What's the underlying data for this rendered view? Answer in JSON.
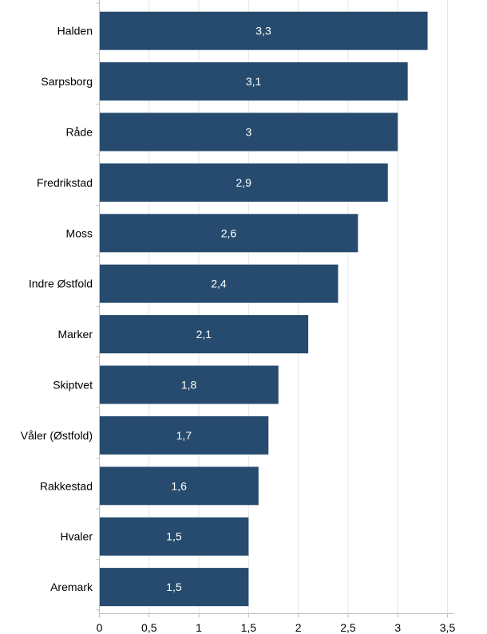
{
  "chart_data": {
    "type": "bar",
    "orientation": "horizontal",
    "title": "",
    "xlabel": "",
    "ylabel": "",
    "categories": [
      "Halden",
      "Sarpsborg",
      "Råde",
      "Fredrikstad",
      "Moss",
      "Indre Østfold",
      "Marker",
      "Skiptvet",
      "Våler (Østfold)",
      "Rakkestad",
      "Hvaler",
      "Aremark"
    ],
    "values": [
      3.3,
      3.1,
      3.0,
      2.9,
      2.6,
      2.4,
      2.1,
      1.8,
      1.7,
      1.6,
      1.5,
      1.5
    ],
    "value_labels": [
      "3,3",
      "3,1",
      "3",
      "2,9",
      "2,6",
      "2,4",
      "2,1",
      "1,8",
      "1,7",
      "1,6",
      "1,5",
      "1,5"
    ],
    "xlim": [
      0,
      3.5
    ],
    "x_ticks": [
      0,
      0.5,
      1,
      1.5,
      2,
      2.5,
      3,
      3.5
    ],
    "x_tick_labels": [
      "0",
      "0,5",
      "1",
      "1,5",
      "2",
      "2,5",
      "3",
      "3,5"
    ],
    "grid": "vertical",
    "legend": "none",
    "bar_color": "#264b6e",
    "grid_color": "#e6e6e6",
    "axis_color": "#bfbfbf"
  }
}
